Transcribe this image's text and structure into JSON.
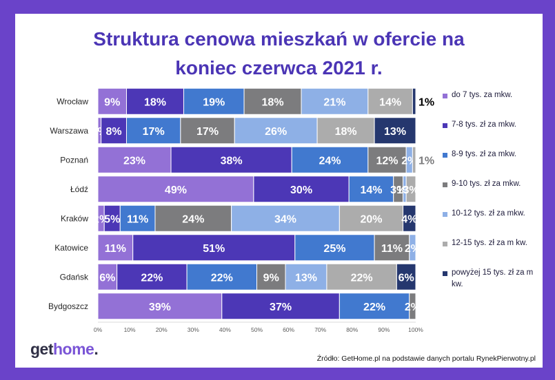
{
  "title": {
    "line1": "Struktura cenowa mieszkań w ofercie na",
    "line2": "koniec czerwca 2021 r."
  },
  "source": "Źródło: GetHome.pl na podstawie danych portalu RynekPierwotny.pl",
  "logo": {
    "part1": "get",
    "part2": "home",
    "part3": "."
  },
  "chart_data": {
    "type": "bar",
    "orientation": "horizontal",
    "stacked": true,
    "percent_stacked": true,
    "categories": [
      "Wrocław",
      "Warszawa",
      "Poznań",
      "Łódź",
      "Kraków",
      "Katowice",
      "Gdańsk",
      "Bydgoszcz"
    ],
    "xlim": [
      0,
      100
    ],
    "x_ticks": [
      "0%",
      "10%",
      "20%",
      "30%",
      "40%",
      "50%",
      "60%",
      "70%",
      "80%",
      "90%",
      "100%"
    ],
    "legend_position": "right",
    "series": [
      {
        "name": "do 7 tys. za mkw.",
        "color": "#9371d6",
        "values": [
          9,
          1,
          23,
          49,
          2,
          11,
          6,
          39
        ],
        "labels": [
          "9%",
          "1%",
          "23%",
          "49%",
          "2%",
          "11%",
          "6%",
          "39%"
        ]
      },
      {
        "name": "7-8 tys. zł za mkw.",
        "color": "#4c37b6",
        "values": [
          18,
          8,
          38,
          30,
          5,
          51,
          22,
          37
        ],
        "labels": [
          "18%",
          "8%",
          "38%",
          "30%",
          "5%",
          "51%",
          "22%",
          "37%"
        ]
      },
      {
        "name": "8-9 tys. zł za mkw.",
        "color": "#4179cf",
        "values": [
          19,
          17,
          24,
          14,
          11,
          25,
          22,
          22
        ],
        "labels": [
          "19%",
          "17%",
          "24%",
          "14%",
          "11%",
          "25%",
          "22%",
          "22%"
        ]
      },
      {
        "name": "9-10 tys. zł za mkw.",
        "color": "#7c7c7e",
        "values": [
          18,
          17,
          12,
          3,
          24,
          11,
          9,
          2
        ],
        "labels": [
          "18%",
          "17%",
          "12%",
          "3%",
          "24%",
          "11%",
          "9%",
          "2%"
        ]
      },
      {
        "name": "10-12 tys. zł za mkw.",
        "color": "#8eb0e6",
        "values": [
          21,
          26,
          2,
          1,
          34,
          2,
          13,
          0
        ],
        "labels": [
          "21%",
          "26%",
          "2%",
          "1%",
          "34%",
          "2%",
          "13%",
          ""
        ]
      },
      {
        "name": "12-15 tys. zł za m kw.",
        "color": "#acacac",
        "values": [
          14,
          18,
          1,
          3,
          20,
          0,
          22,
          0
        ],
        "labels": [
          "14%",
          "18%",
          "1%",
          "3%",
          "20%",
          "",
          "22%",
          ""
        ]
      },
      {
        "name": "powyżej 15 tys. zł za m kw.",
        "color": "#25376e",
        "values": [
          1,
          13,
          0,
          0,
          4,
          0,
          6,
          0
        ],
        "labels": [
          "1%",
          "13%",
          "",
          "",
          "4%",
          "",
          "6%",
          ""
        ]
      }
    ]
  }
}
